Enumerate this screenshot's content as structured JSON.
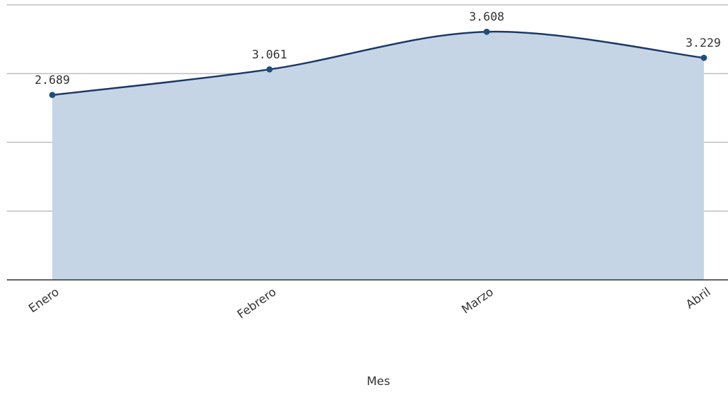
{
  "chart_data": {
    "type": "area",
    "x_label": "Mes",
    "categories": [
      "Enero",
      "Febrero",
      "Marzo",
      "Abril"
    ],
    "values": [
      2.689,
      3.061,
      3.608,
      3.229
    ],
    "color": "#1b3763",
    "fill": "#c5d5e6",
    "ylim": [
      0,
      4
    ],
    "yticks": [
      0,
      1,
      2,
      3,
      4
    ],
    "grid": true
  }
}
